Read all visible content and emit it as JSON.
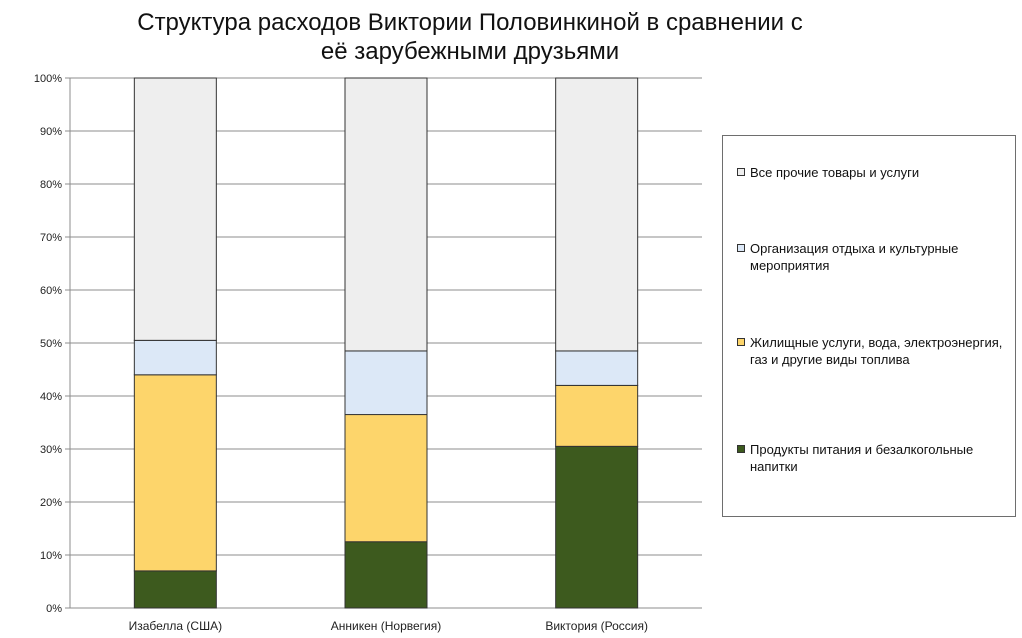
{
  "chart_data": {
    "type": "bar",
    "stacked": true,
    "title": "Структура расходов Виктории Половинкиной в сравнении с\nеё зарубежными друзьями",
    "categories": [
      "Изабелла (США)",
      "Анникен (Норвегия)",
      "Виктория (Россия)"
    ],
    "series": [
      {
        "name": "Продукты питания и безалкогольные напитки",
        "color": "#3d5a1e",
        "values": [
          7,
          12.5,
          30.5
        ]
      },
      {
        "name": "Жилищные услуги, вода, электроэнергия, газ и другие виды топлива",
        "color": "#fdd56b",
        "values": [
          37,
          24,
          11.5
        ]
      },
      {
        "name": "Организация отдыха и культурные мероприятия",
        "color": "#dce8f7",
        "values": [
          6.5,
          12,
          6.5
        ]
      },
      {
        "name": "Все прочие товары и услуги",
        "color": "#eeeeee",
        "values": [
          49.5,
          51.5,
          51.5
        ]
      }
    ],
    "ylim": [
      0,
      100
    ],
    "yticks": [
      "0%",
      "10%",
      "20%",
      "30%",
      "40%",
      "50%",
      "60%",
      "70%",
      "80%",
      "90%",
      "100%"
    ],
    "grid": true,
    "legend_position": "right"
  }
}
